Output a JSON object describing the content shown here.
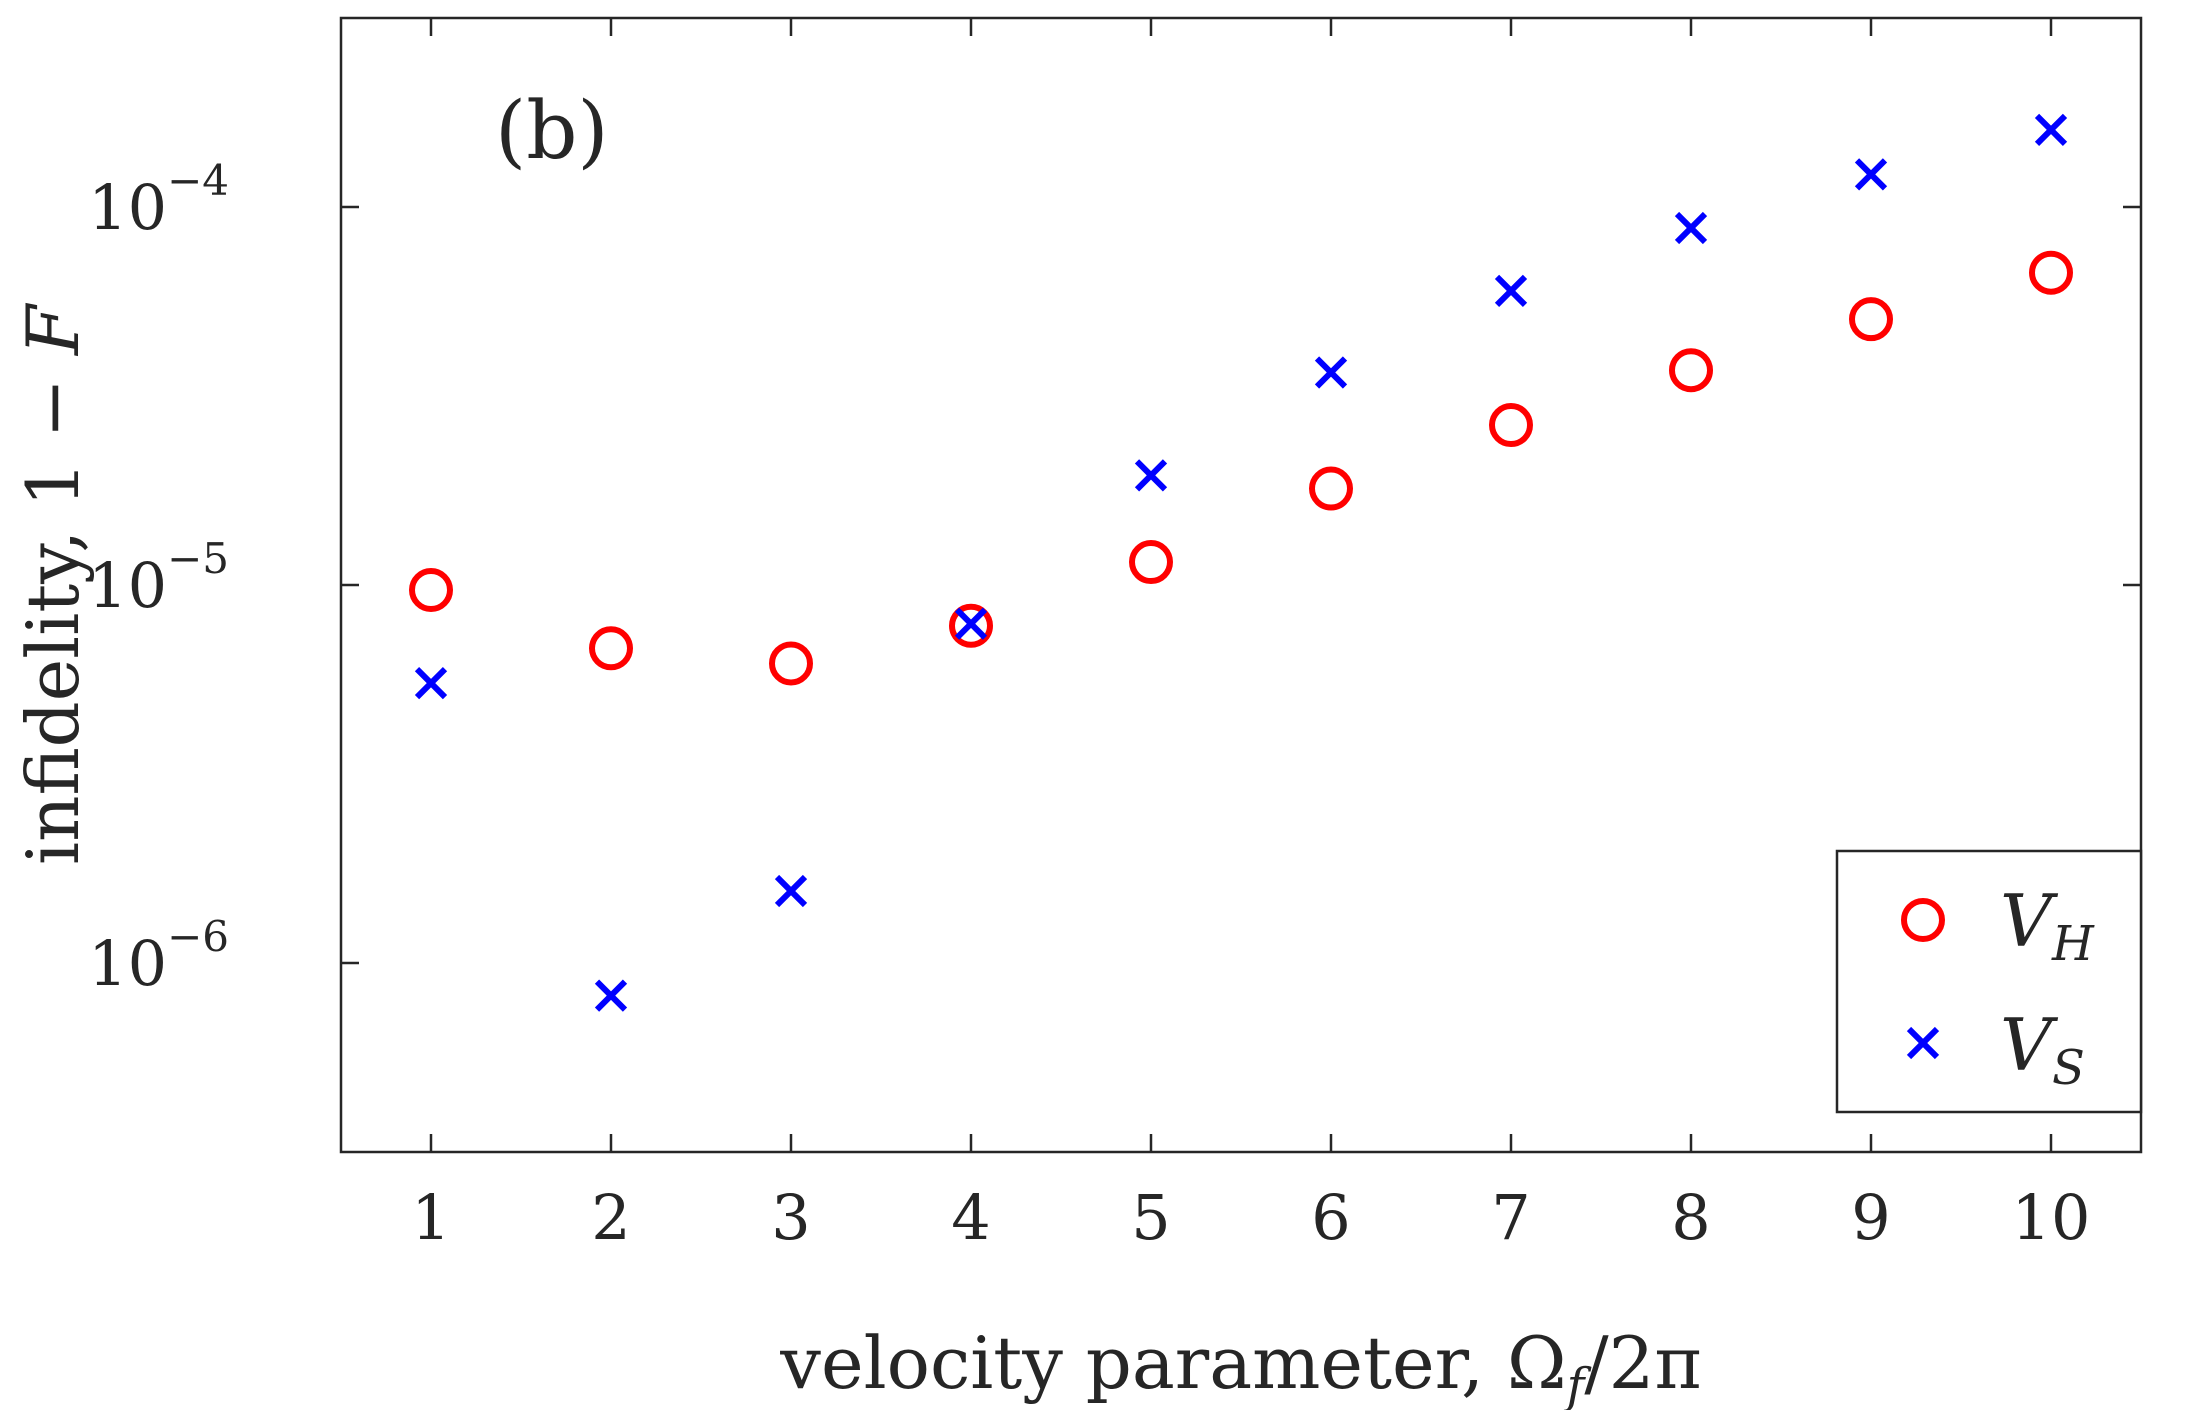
{
  "chart_data": {
    "type": "scatter",
    "panel_label": "(b)",
    "xlabel": {
      "prefix": "velocity parameter, ",
      "symbol": "Ω",
      "sub": "f",
      "suffix": "/2π"
    },
    "ylabel": {
      "prefix": "infidelity, 1 − ",
      "symbol": "F"
    },
    "x": [
      1,
      2,
      3,
      4,
      5,
      6,
      7,
      8,
      9,
      10
    ],
    "xlim": [
      0.5,
      10.5
    ],
    "ylim_log10": [
      -6.5,
      -3.5
    ],
    "yscale": "log",
    "grid": false,
    "x_ticks": [
      {
        "value": 1,
        "label": "1"
      },
      {
        "value": 2,
        "label": "2"
      },
      {
        "value": 3,
        "label": "3"
      },
      {
        "value": 4,
        "label": "4"
      },
      {
        "value": 5,
        "label": "5"
      },
      {
        "value": 6,
        "label": "6"
      },
      {
        "value": 7,
        "label": "7"
      },
      {
        "value": 8,
        "label": "8"
      },
      {
        "value": 9,
        "label": "9"
      },
      {
        "value": 10,
        "label": "10"
      }
    ],
    "y_ticks": [
      {
        "value": 1e-06,
        "base": "10",
        "exponent": "−6"
      },
      {
        "value": 1e-05,
        "base": "10",
        "exponent": "−5"
      },
      {
        "value": 0.0001,
        "base": "10",
        "exponent": "−4"
      }
    ],
    "series": [
      {
        "name": "V",
        "name_sub": "H",
        "marker": "circle",
        "color": "#ff0000",
        "values": [
          9.7e-06,
          6.8e-06,
          6.2e-06,
          7.8e-06,
          1.15e-05,
          1.8e-05,
          2.65e-05,
          3.7e-05,
          5.05e-05,
          6.7e-05
        ]
      },
      {
        "name": "V",
        "name_sub": "S",
        "marker": "cross",
        "color": "#0000ff",
        "values": [
          5.5e-06,
          8.2e-07,
          1.55e-06,
          7.9e-06,
          1.95e-05,
          3.65e-05,
          6e-05,
          8.8e-05,
          0.000122,
          0.00016
        ]
      }
    ],
    "legend": {
      "position": "bottom-right"
    }
  }
}
